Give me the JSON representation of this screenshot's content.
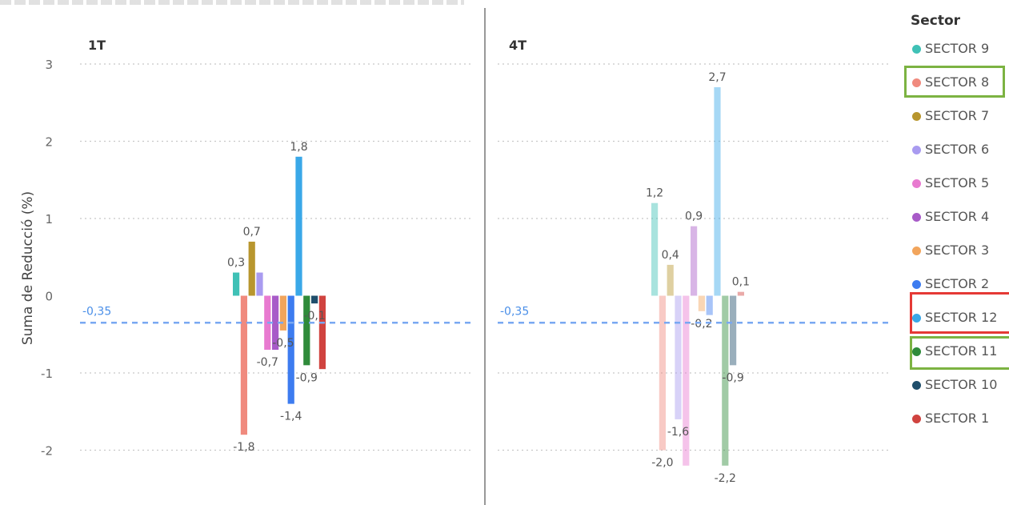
{
  "ylabel": "Suma de Reducció (%)",
  "legend_title": "Sector",
  "sectors": [
    {
      "name": "SECTOR 9",
      "color": "#3fc1b6"
    },
    {
      "name": "SECTOR 8",
      "color": "#f08a7e"
    },
    {
      "name": "SECTOR 7",
      "color": "#b8962e"
    },
    {
      "name": "SECTOR 6",
      "color": "#a99bf0"
    },
    {
      "name": "SECTOR 5",
      "color": "#e87ad0"
    },
    {
      "name": "SECTOR 4",
      "color": "#a85bc8"
    },
    {
      "name": "SECTOR 3",
      "color": "#f2a55c"
    },
    {
      "name": "SECTOR 2",
      "color": "#3d7cf0"
    },
    {
      "name": "SECTOR 12",
      "color": "#3aa8e8"
    },
    {
      "name": "SECTOR 11",
      "color": "#2f8b3a"
    },
    {
      "name": "SECTOR 10",
      "color": "#1f4e6b"
    },
    {
      "name": "SECTOR 1",
      "color": "#d0433f"
    }
  ],
  "chart_data": {
    "type": "bar",
    "ylim": [
      -2.4,
      3.2
    ],
    "yticks": [
      3,
      2,
      1,
      0,
      -1,
      -2
    ],
    "ytick_labels": [
      "3",
      "2",
      "1",
      "0",
      "-1",
      "-2"
    ],
    "grid": true,
    "legend_position": "right",
    "panels": [
      {
        "title": "1T",
        "faded": false,
        "reference_line": -0.35,
        "reference_label": "-0,35",
        "bars": [
          {
            "sector": "SECTOR 9",
            "value": 0.3,
            "label": "0,3"
          },
          {
            "sector": "SECTOR 8",
            "value": -1.8,
            "label": "-1,8"
          },
          {
            "sector": "SECTOR 7",
            "value": 0.7,
            "label": "0,7"
          },
          {
            "sector": "SECTOR 6",
            "value": 0.3,
            "label": ""
          },
          {
            "sector": "SECTOR 5",
            "value": -0.7,
            "label": "-0,7"
          },
          {
            "sector": "SECTOR 4",
            "value": -0.7,
            "label": ""
          },
          {
            "sector": "SECTOR 3",
            "value": -0.45,
            "label": "-0,5"
          },
          {
            "sector": "SECTOR 2",
            "value": -1.4,
            "label": "-1,4"
          },
          {
            "sector": "SECTOR 12",
            "value": 1.8,
            "label": "1,8"
          },
          {
            "sector": "SECTOR 11",
            "value": -0.9,
            "label": "-0,9"
          },
          {
            "sector": "SECTOR 10",
            "value": -0.1,
            "label": "-0,1"
          },
          {
            "sector": "SECTOR 1",
            "value": -0.95,
            "label": ""
          }
        ]
      },
      {
        "title": "4T",
        "faded": true,
        "reference_line": -0.35,
        "reference_label": "-0,35",
        "bars": [
          {
            "sector": "SECTOR 9",
            "value": 1.2,
            "label": "1,2"
          },
          {
            "sector": "SECTOR 8",
            "value": -2.0,
            "label": "-2,0"
          },
          {
            "sector": "SECTOR 7",
            "value": 0.4,
            "label": "0,4"
          },
          {
            "sector": "SECTOR 6",
            "value": -1.6,
            "label": "-1,6"
          },
          {
            "sector": "SECTOR 5",
            "value": -2.2,
            "label": ""
          },
          {
            "sector": "SECTOR 4",
            "value": 0.9,
            "label": "0,9"
          },
          {
            "sector": "SECTOR 3",
            "value": -0.2,
            "label": "-0,2"
          },
          {
            "sector": "SECTOR 2",
            "value": -0.25,
            "label": ""
          },
          {
            "sector": "SECTOR 12",
            "value": 2.7,
            "label": "2,7"
          },
          {
            "sector": "SECTOR 11",
            "value": -2.2,
            "label": "-2,2"
          },
          {
            "sector": "SECTOR 10",
            "value": -0.9,
            "label": "-0,9"
          },
          {
            "sector": "SECTOR 1",
            "value": 0.05,
            "label": "0,1"
          }
        ]
      }
    ]
  }
}
